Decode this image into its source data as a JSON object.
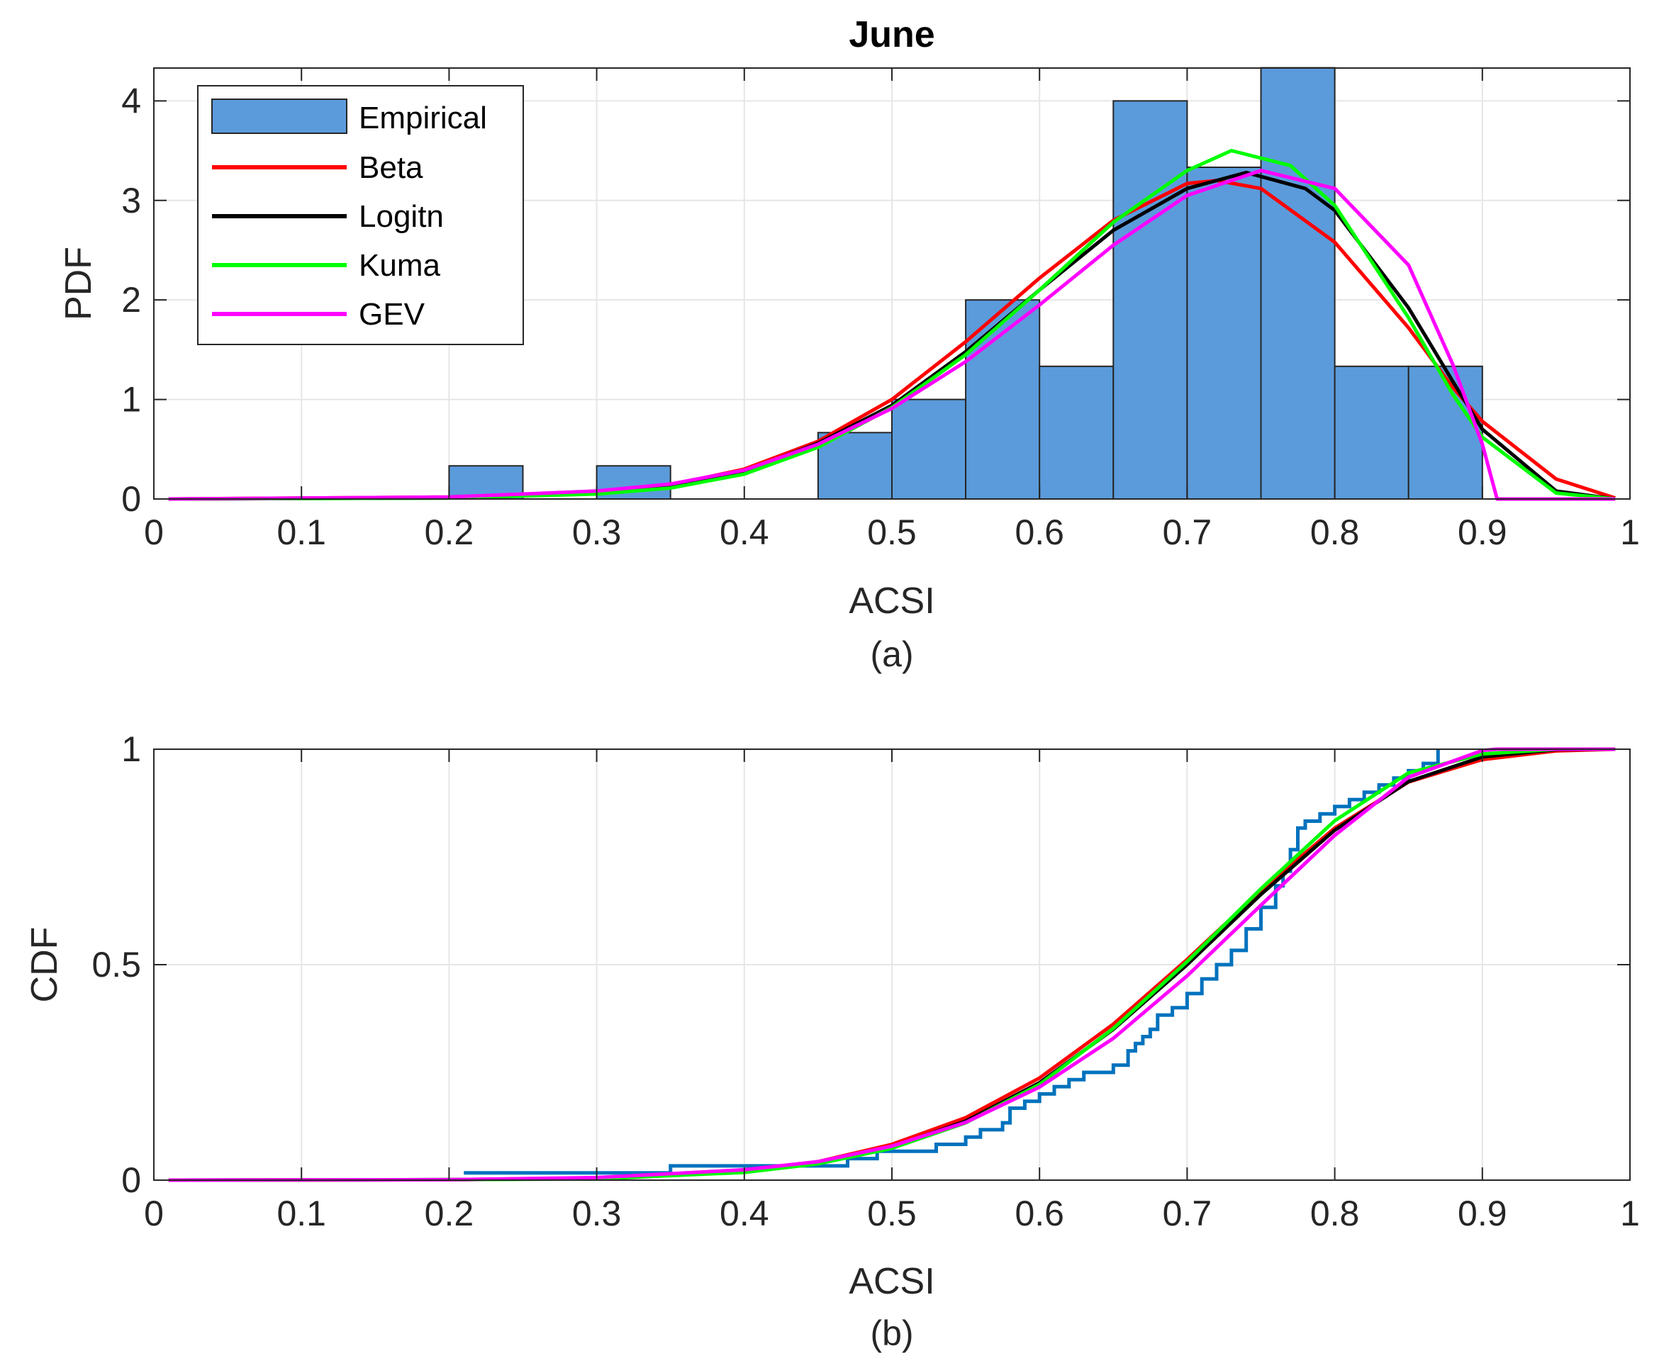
{
  "figure_title": "June",
  "chart_data": [
    {
      "type": "bar",
      "panel": "a",
      "caption": "(a)",
      "title": "June",
      "xlabel": "ACSI",
      "ylabel": "PDF",
      "xlim": [
        0,
        1
      ],
      "ylim": [
        0,
        4.33
      ],
      "grid": true,
      "xticks": [
        0,
        0.1,
        0.2,
        0.3,
        0.4,
        0.5,
        0.6,
        0.7,
        0.8,
        0.9,
        1
      ],
      "xtick_labels": [
        "0",
        "0.1",
        "0.2",
        "0.3",
        "0.4",
        "0.5",
        "0.6",
        "0.7",
        "0.8",
        "0.9",
        "1"
      ],
      "yticks": [
        0,
        1,
        2,
        3,
        4
      ],
      "ytick_labels": [
        "0",
        "1",
        "2",
        "3",
        "4"
      ],
      "legend_position": "top-left",
      "histogram": {
        "name": "Empirical",
        "color": "#5b9bdb",
        "bin_edges": [
          0.2,
          0.25,
          0.3,
          0.35,
          0.4,
          0.45,
          0.5,
          0.55,
          0.6,
          0.65,
          0.7,
          0.75,
          0.8,
          0.85,
          0.9
        ],
        "values": [
          0.333,
          0,
          0.333,
          0,
          0,
          0.667,
          1.0,
          2.0,
          1.333,
          4.0,
          3.333,
          4.333,
          1.333,
          1.333
        ]
      },
      "series": [
        {
          "name": "Beta",
          "color": "#ff0000",
          "x": [
            0.01,
            0.2,
            0.3,
            0.35,
            0.4,
            0.45,
            0.5,
            0.55,
            0.6,
            0.65,
            0.7,
            0.72,
            0.75,
            0.8,
            0.85,
            0.88,
            0.9,
            0.95,
            0.99
          ],
          "y": [
            0,
            0.02,
            0.07,
            0.14,
            0.3,
            0.58,
            1.0,
            1.58,
            2.22,
            2.8,
            3.17,
            3.2,
            3.12,
            2.58,
            1.72,
            1.12,
            0.78,
            0.2,
            0.01
          ]
        },
        {
          "name": "Logitn",
          "color": "#000000",
          "x": [
            0.01,
            0.2,
            0.3,
            0.35,
            0.4,
            0.45,
            0.5,
            0.55,
            0.6,
            0.65,
            0.7,
            0.74,
            0.78,
            0.8,
            0.85,
            0.88,
            0.9,
            0.95,
            0.99
          ],
          "y": [
            0,
            0.01,
            0.06,
            0.13,
            0.28,
            0.56,
            0.94,
            1.48,
            2.1,
            2.7,
            3.12,
            3.28,
            3.12,
            2.9,
            1.92,
            1.18,
            0.7,
            0.08,
            0
          ]
        },
        {
          "name": "Kuma",
          "color": "#00ff00",
          "x": [
            0.01,
            0.2,
            0.3,
            0.35,
            0.4,
            0.45,
            0.5,
            0.55,
            0.6,
            0.65,
            0.7,
            0.73,
            0.77,
            0.8,
            0.85,
            0.88,
            0.9,
            0.95,
            0.99
          ],
          "y": [
            0,
            0.01,
            0.05,
            0.11,
            0.25,
            0.52,
            0.92,
            1.45,
            2.1,
            2.78,
            3.3,
            3.5,
            3.35,
            2.95,
            1.82,
            1.05,
            0.62,
            0.06,
            0
          ]
        },
        {
          "name": "GEV",
          "color": "#ff00ff",
          "x": [
            0.01,
            0.2,
            0.3,
            0.35,
            0.4,
            0.45,
            0.5,
            0.55,
            0.6,
            0.65,
            0.7,
            0.75,
            0.8,
            0.85,
            0.88,
            0.9,
            0.91,
            0.95,
            0.99
          ],
          "y": [
            0,
            0.02,
            0.08,
            0.15,
            0.29,
            0.55,
            0.91,
            1.38,
            1.95,
            2.55,
            3.05,
            3.3,
            3.12,
            2.35,
            1.35,
            0.55,
            0,
            0,
            0
          ]
        }
      ]
    },
    {
      "type": "line",
      "panel": "b",
      "caption": "(b)",
      "xlabel": "ACSI",
      "ylabel": "CDF",
      "xlim": [
        0,
        1
      ],
      "ylim": [
        0,
        1
      ],
      "grid": true,
      "xticks": [
        0,
        0.1,
        0.2,
        0.3,
        0.4,
        0.5,
        0.6,
        0.7,
        0.8,
        0.9,
        1
      ],
      "xtick_labels": [
        "0",
        "0.1",
        "0.2",
        "0.3",
        "0.4",
        "0.5",
        "0.6",
        "0.7",
        "0.8",
        "0.9",
        "1"
      ],
      "yticks": [
        0,
        0.5,
        1
      ],
      "ytick_labels": [
        "0",
        "0.5",
        "1"
      ],
      "empirical": {
        "name": "Empirical",
        "color": "#0072bd",
        "x": [
          0.21,
          0.35,
          0.47,
          0.49,
          0.53,
          0.55,
          0.56,
          0.575,
          0.58,
          0.59,
          0.6,
          0.61,
          0.62,
          0.63,
          0.65,
          0.66,
          0.665,
          0.67,
          0.675,
          0.68,
          0.69,
          0.7,
          0.71,
          0.72,
          0.73,
          0.74,
          0.75,
          0.76,
          0.765,
          0.77,
          0.775,
          0.78,
          0.79,
          0.8,
          0.81,
          0.82,
          0.83,
          0.84,
          0.85,
          0.86,
          0.87
        ],
        "y": [
          0.017,
          0.033,
          0.05,
          0.067,
          0.083,
          0.1,
          0.117,
          0.133,
          0.167,
          0.183,
          0.2,
          0.217,
          0.233,
          0.25,
          0.267,
          0.3,
          0.317,
          0.333,
          0.35,
          0.383,
          0.4,
          0.433,
          0.467,
          0.5,
          0.533,
          0.583,
          0.633,
          0.683,
          0.717,
          0.767,
          0.817,
          0.833,
          0.85,
          0.867,
          0.883,
          0.9,
          0.917,
          0.933,
          0.95,
          0.967,
          1.0
        ]
      },
      "series": [
        {
          "name": "Beta",
          "color": "#ff0000",
          "x": [
            0.01,
            0.2,
            0.3,
            0.4,
            0.45,
            0.5,
            0.55,
            0.6,
            0.65,
            0.7,
            0.75,
            0.8,
            0.85,
            0.9,
            0.95,
            0.99
          ],
          "y": [
            0,
            0.001,
            0.005,
            0.022,
            0.043,
            0.083,
            0.145,
            0.237,
            0.362,
            0.512,
            0.672,
            0.817,
            0.924,
            0.976,
            0.996,
            1.0
          ]
        },
        {
          "name": "Logitn",
          "color": "#000000",
          "x": [
            0.01,
            0.2,
            0.3,
            0.4,
            0.45,
            0.5,
            0.55,
            0.6,
            0.65,
            0.7,
            0.75,
            0.8,
            0.85,
            0.9,
            0.95,
            0.99
          ],
          "y": [
            0,
            0.001,
            0.004,
            0.02,
            0.04,
            0.077,
            0.137,
            0.226,
            0.35,
            0.5,
            0.663,
            0.812,
            0.925,
            0.982,
            0.999,
            1.0
          ]
        },
        {
          "name": "Kuma",
          "color": "#00ff00",
          "x": [
            0.01,
            0.2,
            0.3,
            0.4,
            0.45,
            0.5,
            0.55,
            0.6,
            0.65,
            0.7,
            0.75,
            0.8,
            0.85,
            0.9,
            0.95,
            0.99
          ],
          "y": [
            0,
            0.001,
            0.003,
            0.018,
            0.038,
            0.074,
            0.133,
            0.222,
            0.352,
            0.507,
            0.676,
            0.834,
            0.945,
            0.989,
            1.0,
            1.0
          ]
        },
        {
          "name": "GEV",
          "color": "#ff00ff",
          "x": [
            0.01,
            0.2,
            0.3,
            0.4,
            0.45,
            0.5,
            0.55,
            0.6,
            0.65,
            0.7,
            0.75,
            0.8,
            0.85,
            0.9,
            0.91,
            0.95,
            0.99
          ],
          "y": [
            0,
            0.001,
            0.006,
            0.024,
            0.043,
            0.079,
            0.134,
            0.216,
            0.329,
            0.474,
            0.638,
            0.8,
            0.935,
            0.997,
            1.0,
            1.0,
            1.0
          ]
        }
      ]
    }
  ]
}
